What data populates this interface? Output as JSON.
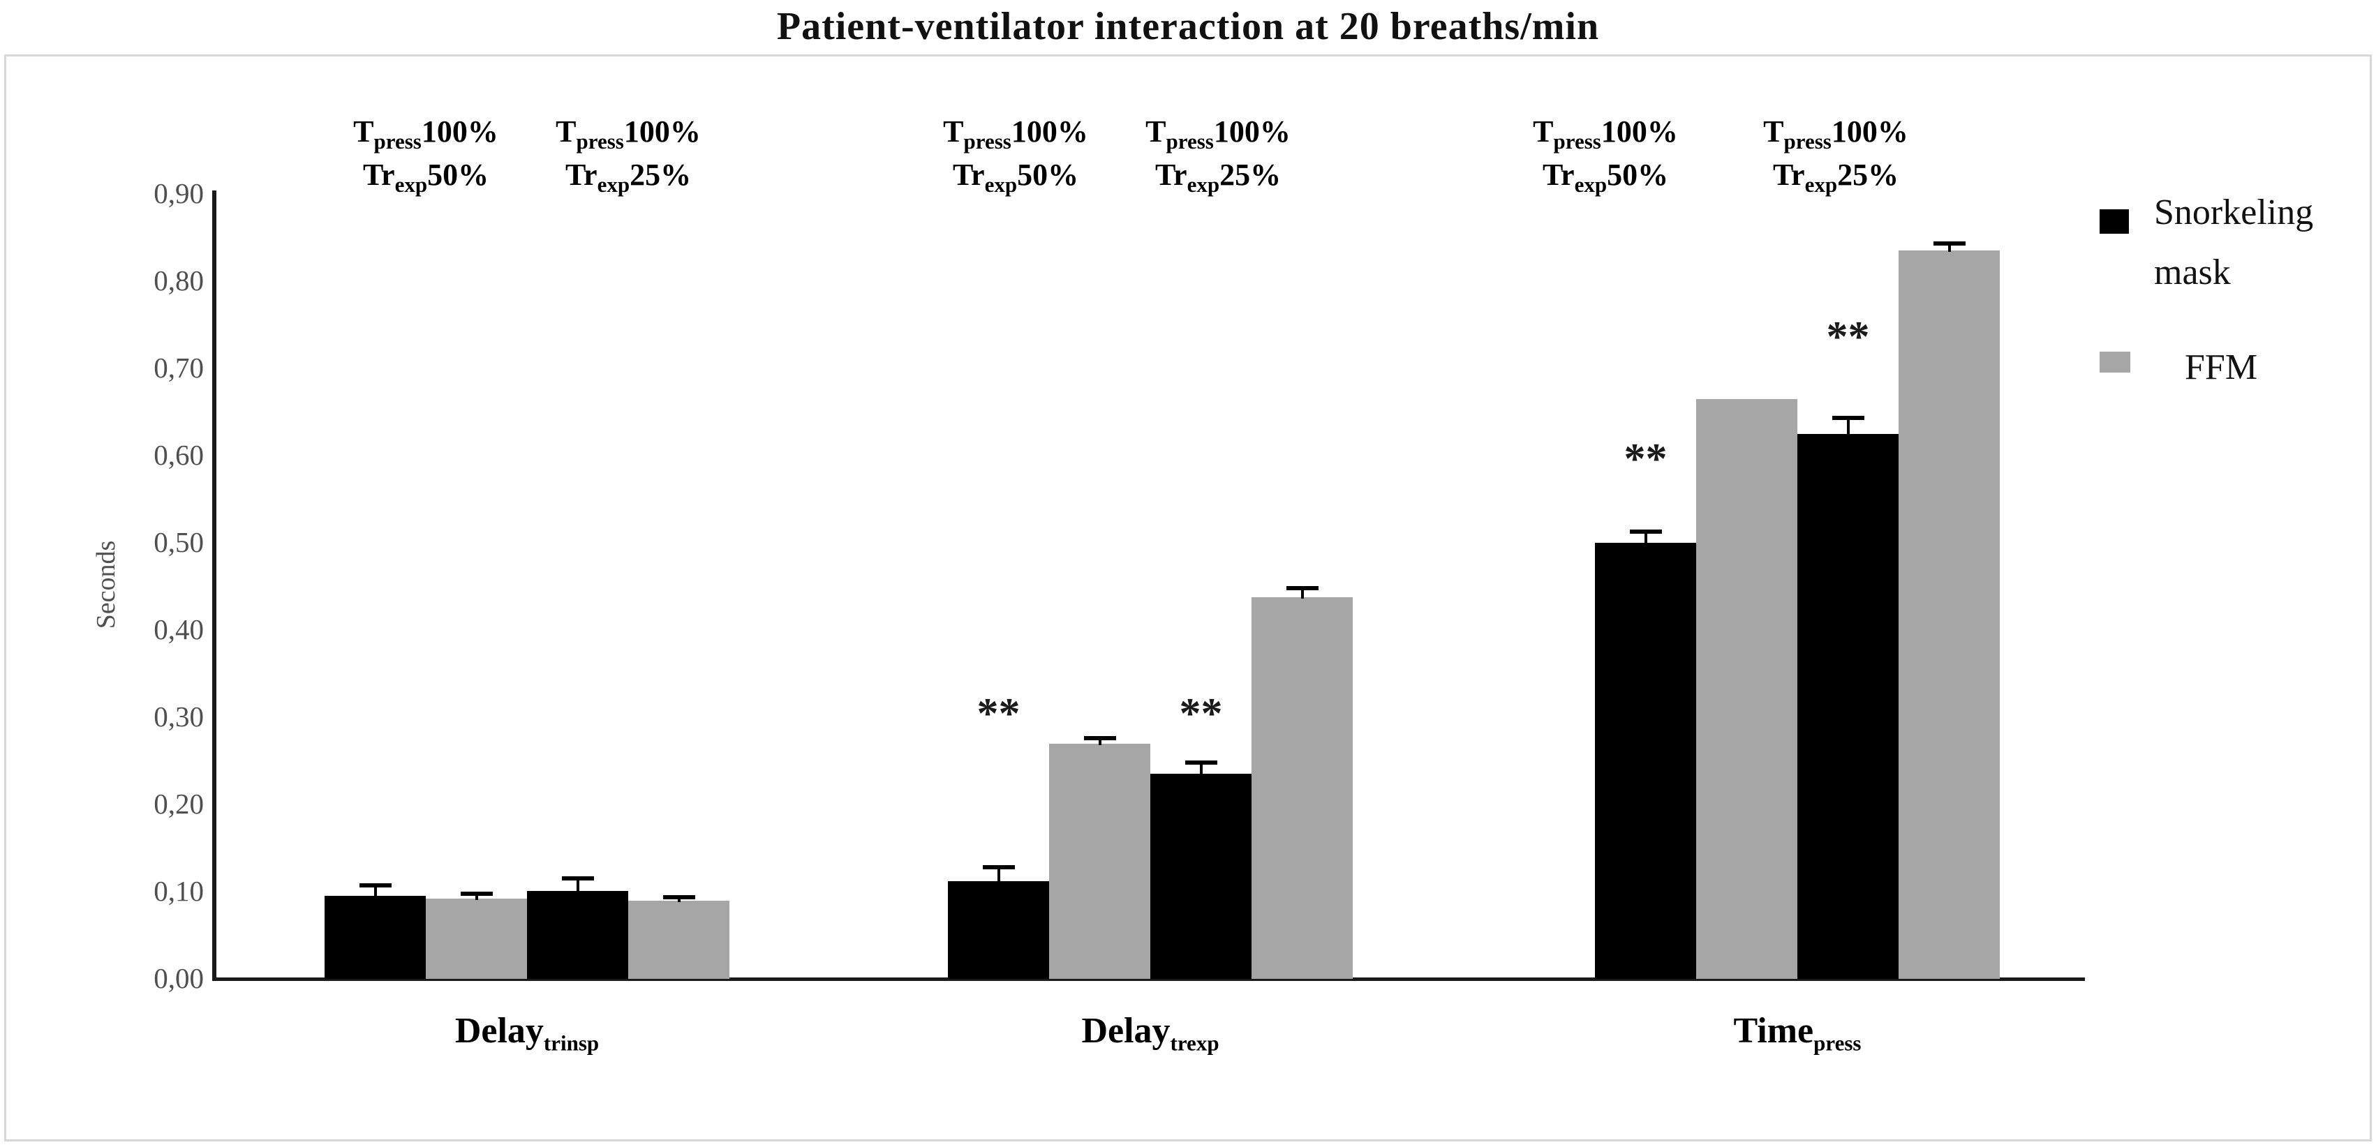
{
  "title": "Patient-ventilator interaction at 20 breaths/min",
  "y_axis": {
    "label": "Seconds",
    "ticks": [
      "0,00",
      "0,10",
      "0,20",
      "0,30",
      "0,40",
      "0,50",
      "0,60",
      "0,70",
      "0,80",
      "0,90"
    ],
    "min": 0,
    "max": 0.9,
    "step": 0.1
  },
  "legend": [
    {
      "label": "Snorkeling mask",
      "color": "#000000"
    },
    {
      "label": "FFM",
      "color": "#a6a6a6"
    }
  ],
  "chart_data": {
    "type": "bar",
    "unit": "seconds",
    "title": "Patient-ventilator interaction at 20 breaths/min",
    "ylabel": "Seconds",
    "ylim": [
      0,
      0.9
    ],
    "grid": false,
    "legend_position": "right",
    "series_colors": {
      "Snorkeling mask": "#000000",
      "FFM": "#a6a6a6"
    },
    "condition_labels": [
      {
        "line1_main": "T",
        "line1_sub": "press",
        "line1_rest": "100%",
        "line2_main": "Tr",
        "line2_sub": "exp",
        "line2_rest": "50%"
      },
      {
        "line1_main": "T",
        "line1_sub": "press",
        "line1_rest": "100%",
        "line2_main": "Tr",
        "line2_sub": "exp",
        "line2_rest": "25%"
      }
    ],
    "groups": [
      {
        "category": "Delay_trinsp",
        "label_main": "Delay",
        "label_sub": "trinsp",
        "bars": [
          {
            "series": "Snorkeling mask",
            "condition": "Tpress100% Trexp50%",
            "value": 0.095,
            "error": 0.012
          },
          {
            "series": "FFM",
            "condition": "Tpress100% Trexp50%",
            "value": 0.092,
            "error": 0.006
          },
          {
            "series": "Snorkeling mask",
            "condition": "Tpress100% Trexp25%",
            "value": 0.101,
            "error": 0.014
          },
          {
            "series": "FFM",
            "condition": "Tpress100% Trexp25%",
            "value": 0.09,
            "error": 0.004
          }
        ]
      },
      {
        "category": "Delay_trexp",
        "label_main": "Delay",
        "label_sub": "trexp",
        "bars": [
          {
            "series": "Snorkeling mask",
            "condition": "Tpress100% Trexp50%",
            "value": 0.112,
            "error": 0.016
          },
          {
            "series": "FFM",
            "condition": "Tpress100% Trexp50%",
            "value": 0.27,
            "error": 0.006
          },
          {
            "series": "Snorkeling mask",
            "condition": "Tpress100% Trexp25%",
            "value": 0.235,
            "error": 0.013
          },
          {
            "series": "FFM",
            "condition": "Tpress100% Trexp25%",
            "value": 0.438,
            "error": 0.01
          }
        ]
      },
      {
        "category": "Time_press",
        "label_main": "Time",
        "label_sub": "press",
        "bars": [
          {
            "series": "Snorkeling mask",
            "condition": "Tpress100% Trexp50%",
            "value": 0.5,
            "error": 0.013
          },
          {
            "series": "FFM",
            "condition": "Tpress100% Trexp50%",
            "value": 0.665,
            "error": 0
          },
          {
            "series": "Snorkeling mask",
            "condition": "Tpress100% Trexp25%",
            "value": 0.625,
            "error": 0.018
          },
          {
            "series": "FFM",
            "condition": "Tpress100% Trexp25%",
            "value": 0.835,
            "error": 0.008
          }
        ]
      }
    ],
    "significance_markers": [
      {
        "group": 1,
        "bar": 0,
        "text": "**",
        "y": 0.313
      },
      {
        "group": 1,
        "bar": 2,
        "text": "**",
        "y": 0.313
      },
      {
        "group": 2,
        "bar": 0,
        "text": "**",
        "y": 0.605
      },
      {
        "group": 2,
        "bar": 2,
        "text": "**",
        "y": 0.745
      }
    ]
  }
}
